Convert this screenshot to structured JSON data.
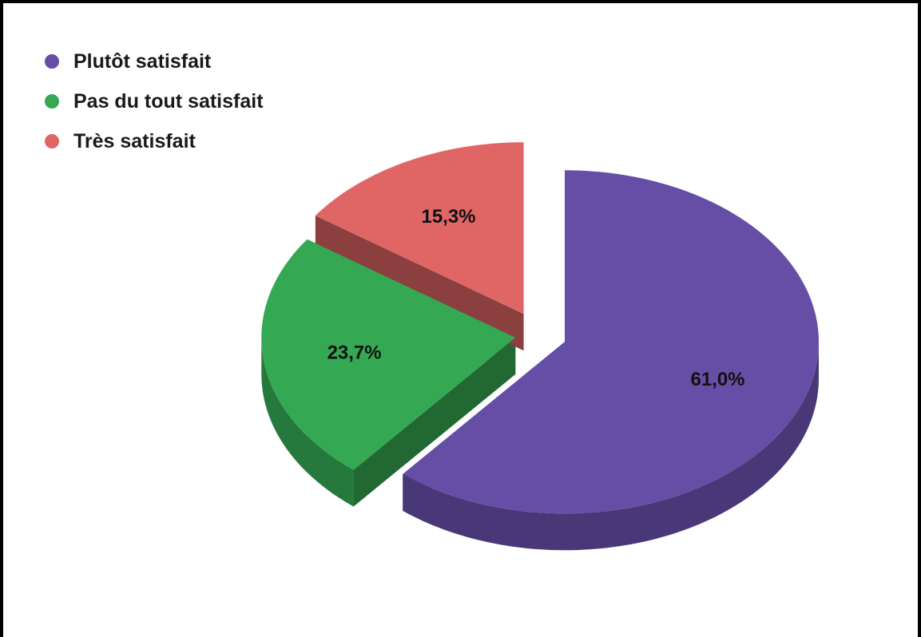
{
  "chart_data": {
    "type": "pie",
    "style": "3d-exploded",
    "legend_position": "top-left",
    "slices": [
      {
        "name": "Plutôt satisfait",
        "value": 61.0,
        "label": "61,0%",
        "color": "#664ea6"
      },
      {
        "name": "Pas du tout satisfait",
        "value": 23.7,
        "label": "23,7%",
        "color": "#35a853"
      },
      {
        "name": "Très satisfait",
        "value": 15.3,
        "label": "15,3%",
        "color": "#e06666"
      }
    ]
  }
}
